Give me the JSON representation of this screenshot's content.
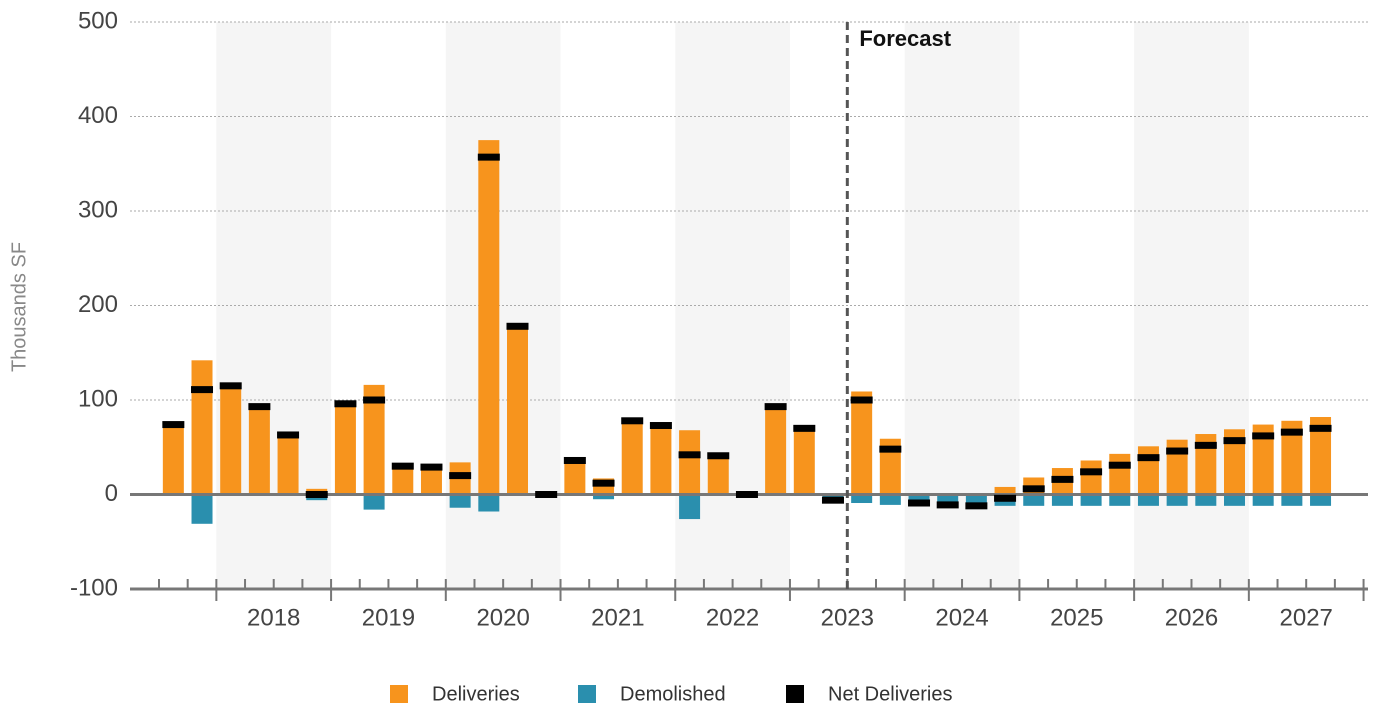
{
  "chart_data": {
    "type": "bar",
    "y_axis_label": "Thousands SF",
    "years": [
      "2018",
      "2019",
      "2020",
      "2021",
      "2022",
      "2023",
      "2024",
      "2025",
      "2026",
      "2027"
    ],
    "ylim": [
      -100,
      500
    ],
    "yticks": [
      -100,
      0,
      100,
      200,
      300,
      400,
      500
    ],
    "grid": true,
    "legend": "bottom",
    "forecast": {
      "label": "Forecast",
      "start": 24
    },
    "series": [
      {
        "name": "Deliveries",
        "color": "#f7941d",
        "values": [
          74,
          142,
          115,
          93,
          63,
          6,
          96,
          116,
          30,
          29,
          34,
          375,
          178,
          0,
          36,
          17,
          78,
          73,
          68,
          41,
          0,
          93,
          70,
          0,
          109,
          59,
          1,
          0,
          0,
          8,
          18,
          28,
          36,
          43,
          51,
          58,
          64,
          69,
          74,
          78,
          82,
          null
        ]
      },
      {
        "name": "Demolished",
        "color": "#2a8fae",
        "values": [
          0,
          -31,
          0,
          0,
          0,
          -6,
          0,
          -16,
          0,
          0,
          -14,
          -18,
          0,
          0,
          0,
          -5,
          0,
          0,
          -26,
          0,
          0,
          0,
          0,
          -6,
          -9,
          -11,
          -10,
          -11,
          -12,
          -12,
          -12,
          -12,
          -12,
          -12,
          -12,
          -12,
          -12,
          -12,
          -12,
          -12,
          -12,
          null
        ]
      },
      {
        "name": "Net Deliveries",
        "color": "#000000",
        "values": [
          74,
          111,
          115,
          93,
          63,
          0,
          96,
          100,
          30,
          29,
          20,
          357,
          178,
          0,
          36,
          12,
          78,
          73,
          42,
          41,
          0,
          93,
          70,
          -6,
          100,
          48,
          -9,
          -11,
          -12,
          -4,
          6,
          16,
          24,
          31,
          39,
          46,
          52,
          57,
          62,
          66,
          70,
          null
        ]
      }
    ]
  }
}
